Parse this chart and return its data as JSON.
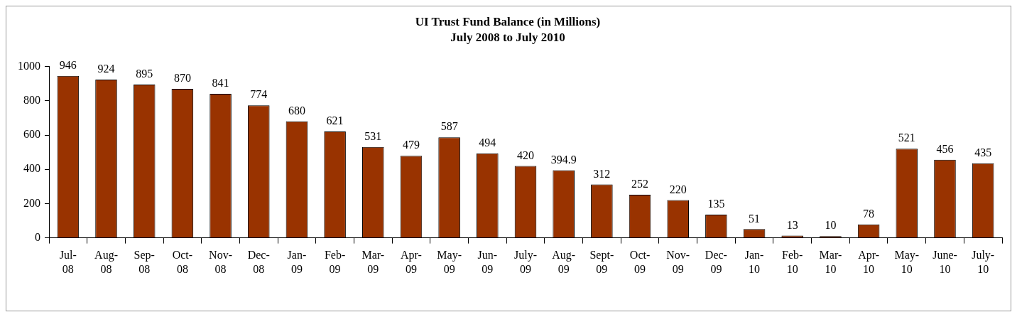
{
  "chart_data": {
    "type": "bar",
    "title": "UI Trust Fund Balance (in Millions)",
    "subtitle": "July 2008 to July 2010",
    "categories": [
      "Jul-08",
      "Aug-08",
      "Sep-08",
      "Oct-08",
      "Nov-08",
      "Dec-08",
      "Jan-09",
      "Feb-09",
      "Mar-09",
      "Apr-09",
      "May-09",
      "Jun-09",
      "July-09",
      "Aug-09",
      "Sept-09",
      "Oct-09",
      "Nov-09",
      "Dec-09",
      "Jan-10",
      "Feb-10",
      "Mar-10",
      "Apr-10",
      "May-10",
      "June-10",
      "July-10"
    ],
    "values": [
      946,
      924,
      895,
      870,
      841,
      774,
      680,
      621,
      531,
      479,
      587,
      494,
      420,
      394.9,
      312,
      252,
      220,
      135,
      51,
      13,
      10,
      78,
      521,
      456,
      435
    ],
    "color": "#993300",
    "ylim": [
      0,
      1000
    ],
    "yticks": [
      0,
      200,
      400,
      600,
      800,
      1000
    ],
    "grid": false,
    "legend": false,
    "data_labels": true
  }
}
